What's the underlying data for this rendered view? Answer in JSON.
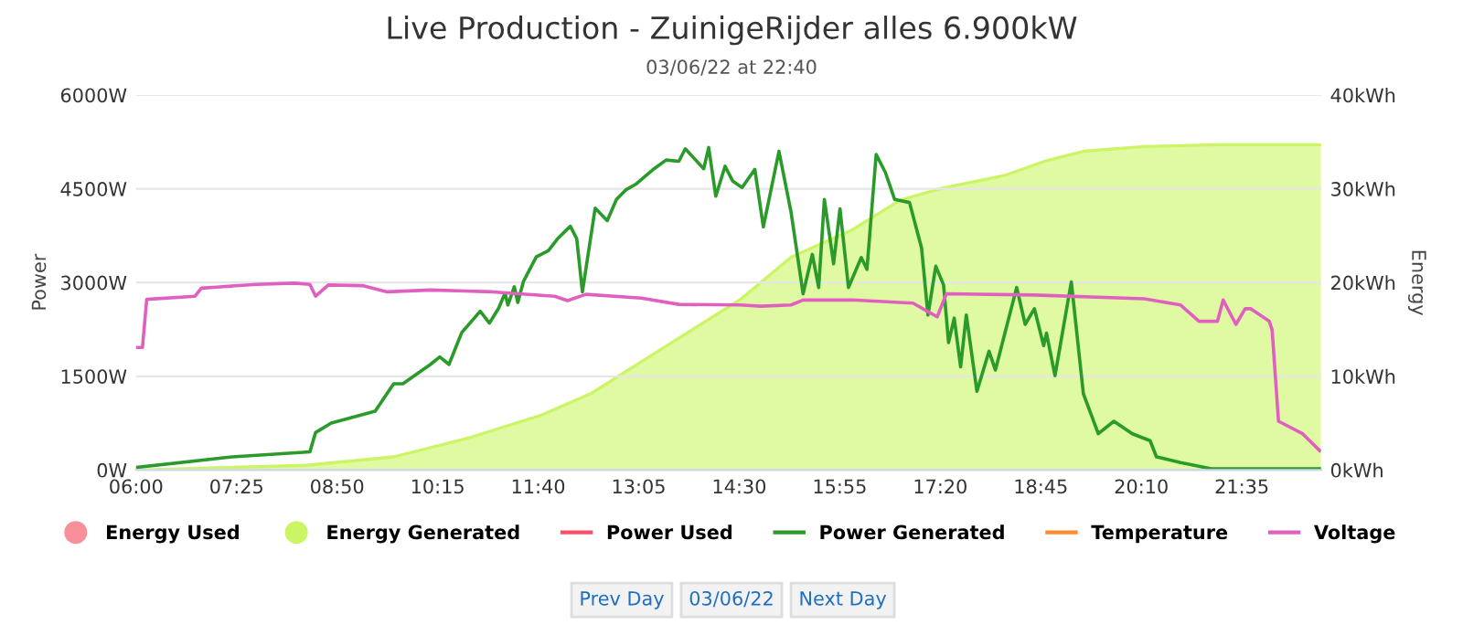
{
  "chart_data": {
    "type": "line",
    "title": "Live Production - ZuinigeRijder alles 6.900kW",
    "subtitle": "03/06/22 at 22:40",
    "ylabel": "Power",
    "y2label": "Energy",
    "xlim": [
      6,
      22.7
    ],
    "ylim": [
      0,
      6000
    ],
    "y2lim": [
      0,
      40
    ],
    "grid": "y",
    "legend": "bottom",
    "xticks": [
      {
        "value": 6,
        "label": "06:00"
      },
      {
        "value": 7.4167,
        "label": "07:25"
      },
      {
        "value": 8.8333,
        "label": "08:50"
      },
      {
        "value": 10.25,
        "label": "10:15"
      },
      {
        "value": 11.6667,
        "label": "11:40"
      },
      {
        "value": 13.0833,
        "label": "13:05"
      },
      {
        "value": 14.5,
        "label": "14:30"
      },
      {
        "value": 15.9167,
        "label": "15:55"
      },
      {
        "value": 17.3333,
        "label": "17:20"
      },
      {
        "value": 18.75,
        "label": "18:45"
      },
      {
        "value": 20.1667,
        "label": "20:10"
      },
      {
        "value": 21.5833,
        "label": "21:35"
      }
    ],
    "yticks": [
      {
        "value": 0,
        "label": "0W"
      },
      {
        "value": 1500,
        "label": "1500W"
      },
      {
        "value": 3000,
        "label": "3000W"
      },
      {
        "value": 4500,
        "label": "4500W"
      },
      {
        "value": 6000,
        "label": "6000W"
      }
    ],
    "y2ticks": [
      {
        "value": 0,
        "label": "0kWh"
      },
      {
        "value": 10,
        "label": "10kWh"
      },
      {
        "value": 20,
        "label": "20kWh"
      },
      {
        "value": 30,
        "label": "30kWh"
      },
      {
        "value": 40,
        "label": "40kWh"
      }
    ],
    "series": [
      {
        "name": "Energy Used",
        "type": "area",
        "axis": "y2",
        "color": "#f7909a"
      },
      {
        "name": "Energy Generated",
        "type": "area",
        "axis": "y2",
        "color": "#ccf566",
        "x": [
          6.0,
          8.4,
          9.63,
          10.68,
          11.73,
          12.42,
          13.3,
          14.52,
          15.23,
          16.09,
          16.77,
          17.38,
          18.23,
          18.83,
          19.35,
          20.21,
          21.24,
          22.7
        ],
        "values": [
          0,
          0.5,
          1.4,
          3.4,
          5.9,
          8.2,
          12.4,
          18.2,
          22.7,
          25.6,
          28.8,
          30.1,
          31.4,
          33.0,
          34.0,
          34.5,
          34.7,
          34.7
        ]
      },
      {
        "name": "Power Used",
        "color": "#ff4d6a"
      },
      {
        "name": "Power Generated",
        "color": "#2a9a2a",
        "x": [
          6.0,
          7.35,
          8.45,
          8.53,
          8.75,
          9.37,
          9.63,
          9.76,
          10.15,
          10.28,
          10.41,
          10.59,
          10.85,
          10.98,
          11.11,
          11.2,
          11.24,
          11.33,
          11.38,
          11.46,
          11.64,
          11.81,
          11.94,
          12.12,
          12.21,
          12.29,
          12.47,
          12.64,
          12.77,
          12.9,
          13.04,
          13.3,
          13.47,
          13.65,
          13.74,
          14.0,
          14.07,
          14.17,
          14.3,
          14.41,
          14.54,
          14.72,
          14.84,
          15.06,
          15.23,
          15.4,
          15.53,
          15.62,
          15.7,
          15.83,
          15.92,
          16.04,
          16.22,
          16.3,
          16.43,
          16.56,
          16.69,
          16.9,
          17.07,
          17.16,
          17.27,
          17.38,
          17.45,
          17.53,
          17.62,
          17.7,
          17.85,
          18.02,
          18.11,
          18.41,
          18.53,
          18.66,
          18.79,
          18.83,
          18.95,
          19.18,
          19.35,
          19.56,
          19.78,
          20.04,
          20.29,
          20.38,
          20.72,
          21.15,
          22.7
        ],
        "values": [
          40,
          210,
          290,
          600,
          750,
          940,
          1380,
          1380,
          1690,
          1810,
          1690,
          2200,
          2540,
          2350,
          2590,
          2830,
          2640,
          2930,
          2680,
          3020,
          3410,
          3510,
          3700,
          3900,
          3700,
          2850,
          4190,
          3990,
          4330,
          4480,
          4570,
          4820,
          4960,
          4940,
          5140,
          4820,
          5160,
          4380,
          4860,
          4620,
          4520,
          4810,
          3890,
          5100,
          4130,
          2820,
          3450,
          2920,
          4330,
          3300,
          4180,
          2920,
          3400,
          3210,
          5050,
          4760,
          4330,
          4280,
          3550,
          2480,
          3260,
          2960,
          2040,
          2430,
          1650,
          2480,
          1260,
          1900,
          1600,
          2920,
          2330,
          2580,
          1990,
          2190,
          1510,
          3010,
          1220,
          580,
          780,
          580,
          470,
          210,
          120,
          20,
          20
        ]
      },
      {
        "name": "Temperature",
        "color": "#ff8c30"
      },
      {
        "name": "Voltage",
        "color": "#e060c0",
        "x": [
          6.0,
          6.09,
          6.15,
          6.83,
          6.92,
          7.18,
          7.7,
          8.23,
          8.45,
          8.53,
          8.71,
          9.19,
          9.54,
          10.15,
          11.03,
          11.9,
          12.08,
          12.34,
          13.12,
          13.65,
          14.52,
          14.8,
          15.23,
          15.4,
          16.09,
          16.95,
          17.29,
          17.42,
          18.66,
          20.21,
          20.72,
          20.98,
          21.24,
          21.32,
          21.5,
          21.63,
          21.71,
          21.97,
          22.01,
          22.1,
          22.44,
          22.68
        ],
        "values": [
          1960,
          1960,
          2730,
          2780,
          2910,
          2930,
          2970,
          2990,
          2970,
          2780,
          2960,
          2950,
          2850,
          2880,
          2850,
          2780,
          2710,
          2810,
          2750,
          2650,
          2640,
          2620,
          2640,
          2720,
          2720,
          2670,
          2450,
          2820,
          2800,
          2740,
          2640,
          2380,
          2380,
          2720,
          2330,
          2580,
          2580,
          2380,
          2240,
          780,
          580,
          310
        ]
      }
    ],
    "annotations": [
      "Prev Day",
      "03/06/22",
      "Next Day"
    ]
  }
}
